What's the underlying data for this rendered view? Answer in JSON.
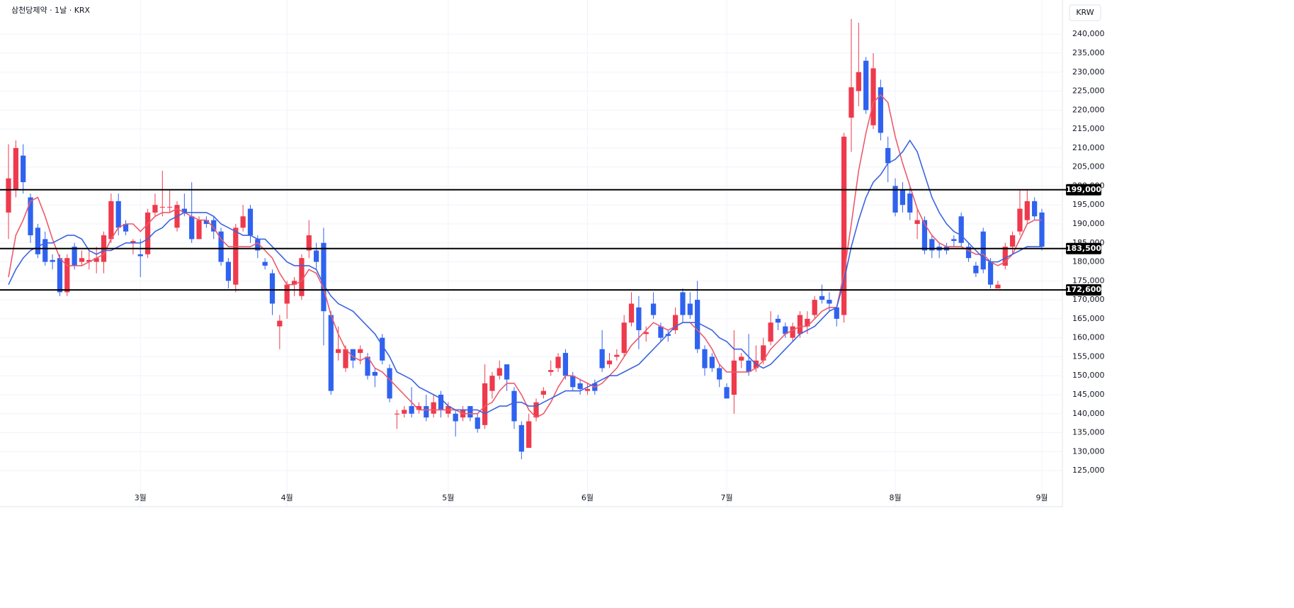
{
  "chart_data": {
    "type": "candlestick",
    "title": "삼천당제약 · 1날 · KRX",
    "currency": "KRW",
    "categories": [
      null,
      null,
      null,
      null,
      null,
      null,
      null,
      null,
      null,
      null,
      null,
      null,
      null,
      null,
      null,
      null,
      null,
      null,
      "3월",
      null,
      null,
      null,
      null,
      null,
      null,
      null,
      null,
      null,
      null,
      null,
      null,
      null,
      null,
      null,
      null,
      null,
      null,
      null,
      "4월",
      null,
      null,
      null,
      null,
      null,
      null,
      null,
      null,
      null,
      null,
      null,
      null,
      null,
      null,
      null,
      null,
      null,
      null,
      null,
      null,
      null,
      "5월",
      null,
      null,
      null,
      null,
      null,
      null,
      null,
      null,
      null,
      null,
      null,
      null,
      null,
      null,
      null,
      null,
      null,
      null,
      "6월",
      null,
      null,
      null,
      null,
      null,
      null,
      null,
      null,
      null,
      null,
      null,
      null,
      null,
      null,
      null,
      null,
      null,
      null,
      "7월",
      null,
      null,
      null,
      null,
      null,
      null,
      null,
      null,
      null,
      null,
      null,
      null,
      null,
      null,
      null,
      null,
      null,
      null,
      null,
      null,
      null,
      null,
      "8월",
      null,
      null,
      null,
      null,
      null,
      null,
      null,
      null,
      null,
      null,
      null,
      null,
      null,
      null,
      null,
      null,
      null,
      null,
      null,
      "9월"
    ],
    "open": [
      193000,
      199000,
      208000,
      197000,
      189000,
      186000,
      180500,
      181000,
      172000,
      184000,
      180000,
      180000,
      180000,
      180000,
      186000,
      196000,
      190000,
      185000,
      182000,
      182000,
      193000,
      194500,
      194500,
      189000,
      194000,
      192000,
      186000,
      191000,
      191000,
      188000,
      180000,
      174000,
      189000,
      194000,
      186000,
      180000,
      177000,
      163000,
      169000,
      174000,
      171000,
      183000,
      183000,
      185000,
      166000,
      156000,
      152000,
      157000,
      156000,
      155000,
      151000,
      160000,
      152000,
      139800,
      140000,
      142000,
      141000,
      142000,
      140000,
      145000,
      140000,
      140000,
      139000,
      142000,
      139000,
      137000,
      146000,
      150000,
      153000,
      146000,
      137000,
      131000,
      139000,
      145000,
      151000,
      152000,
      156000,
      150000,
      148000,
      146000,
      148000,
      157000,
      153000,
      155000,
      156000,
      164000,
      168000,
      161000,
      169000,
      163000,
      161000,
      162000,
      172000,
      169000,
      170000,
      157000,
      155000,
      152000,
      147000,
      145000,
      154000,
      154000,
      152000,
      154000,
      159000,
      165000,
      163000,
      160000,
      161000,
      163000,
      166000,
      171000,
      170000,
      168000,
      166000,
      218000,
      225000,
      233000,
      216000,
      226000,
      210000,
      200000,
      199000,
      198000,
      190000,
      191000,
      186000,
      184000,
      184000,
      186000,
      192000,
      184000,
      179000,
      188000,
      180000,
      173000,
      179000,
      184000,
      188000,
      191000,
      196000,
      193000
    ],
    "high": [
      211000,
      212000,
      211000,
      198000,
      190000,
      188000,
      182000,
      182000,
      182000,
      185000,
      183000,
      183000,
      184000,
      188000,
      198000,
      198000,
      191000,
      186000,
      186000,
      194000,
      198000,
      204000,
      199000,
      196000,
      198000,
      201000,
      192000,
      192000,
      192000,
      189000,
      181000,
      190000,
      195000,
      195000,
      187000,
      181000,
      178000,
      166000,
      175000,
      176000,
      182000,
      191000,
      185000,
      189000,
      167000,
      163000,
      158000,
      157000,
      158000,
      156000,
      152000,
      161000,
      153000,
      141000,
      142000,
      147000,
      143000,
      145000,
      145000,
      146000,
      143000,
      141000,
      142000,
      142000,
      140000,
      153000,
      151000,
      154000,
      153000,
      147000,
      138000,
      140000,
      144000,
      147000,
      154000,
      156000,
      157000,
      151000,
      149000,
      148000,
      149000,
      162000,
      156000,
      157000,
      166000,
      172000,
      171000,
      163000,
      172000,
      164000,
      162000,
      168000,
      173000,
      172000,
      175000,
      158000,
      156000,
      153000,
      148000,
      162000,
      156000,
      161000,
      158000,
      160000,
      167000,
      166000,
      164000,
      164000,
      167000,
      167000,
      171000,
      174000,
      172000,
      168000,
      214000,
      244000,
      243000,
      234000,
      235000,
      228000,
      213000,
      202000,
      201000,
      200000,
      194000,
      192000,
      187000,
      185000,
      185000,
      187000,
      193000,
      185000,
      180000,
      189000,
      181000,
      175000,
      185000,
      188000,
      199000,
      199000,
      197000,
      194000
    ],
    "low": [
      186000,
      197000,
      198000,
      185000,
      181000,
      179000,
      178000,
      171000,
      171000,
      178000,
      179000,
      178000,
      177000,
      177000,
      185000,
      187000,
      187000,
      182000,
      176000,
      181000,
      192000,
      192000,
      193000,
      188000,
      192000,
      185000,
      186000,
      189000,
      186000,
      179000,
      173000,
      172000,
      188000,
      185000,
      181000,
      178000,
      166000,
      157000,
      165000,
      171000,
      170000,
      181000,
      178000,
      158000,
      145000,
      154000,
      151000,
      152000,
      153000,
      149000,
      147000,
      153000,
      143000,
      136000,
      139000,
      139000,
      140000,
      138000,
      139000,
      139000,
      139000,
      134000,
      138000,
      138000,
      135000,
      136000,
      144000,
      149000,
      146000,
      136000,
      128000,
      131000,
      138000,
      144000,
      150000,
      151000,
      149000,
      146000,
      145000,
      145000,
      145000,
      151000,
      152000,
      154000,
      155000,
      163000,
      157000,
      159000,
      165000,
      159000,
      159000,
      161000,
      164000,
      165000,
      156000,
      150000,
      151000,
      147000,
      144000,
      140000,
      152000,
      150000,
      151000,
      153000,
      158000,
      162000,
      160000,
      159000,
      160000,
      161000,
      165000,
      169000,
      167000,
      163000,
      164000,
      209000,
      221000,
      219000,
      215000,
      212000,
      201000,
      192000,
      193000,
      191000,
      186000,
      182000,
      181000,
      181000,
      182000,
      184000,
      184000,
      180000,
      176000,
      177000,
      173000,
      173000,
      178000,
      182000,
      187000,
      190000,
      191000,
      183000
    ],
    "close": [
      202000,
      210000,
      201000,
      187000,
      182000,
      180000,
      180000,
      172000,
      181000,
      179000,
      181000,
      180500,
      181000,
      187000,
      196000,
      189000,
      188000,
      185500,
      181500,
      193000,
      195000,
      194500,
      194500,
      195000,
      193000,
      186000,
      191000,
      190000,
      188000,
      180000,
      175000,
      189000,
      192000,
      187000,
      183000,
      179000,
      169000,
      164500,
      174000,
      175000,
      181000,
      187000,
      180000,
      167000,
      146000,
      157000,
      157000,
      154000,
      157000,
      150000,
      150000,
      154000,
      144000,
      140000,
      141000,
      140000,
      142000,
      139000,
      143000,
      141000,
      142000,
      138000,
      141000,
      139000,
      136000,
      148000,
      150000,
      152000,
      149000,
      138000,
      130000,
      138000,
      143000,
      146000,
      151500,
      155000,
      150000,
      147000,
      146500,
      146500,
      146000,
      152000,
      154000,
      155500,
      164000,
      169000,
      162000,
      161500,
      166000,
      160000,
      160500,
      166000,
      166000,
      166000,
      157000,
      152000,
      152000,
      149000,
      144000,
      154000,
      155000,
      151000,
      154000,
      158000,
      164000,
      164000,
      161000,
      163000,
      166000,
      165000,
      170000,
      170000,
      169000,
      165000,
      213000,
      226000,
      230000,
      220000,
      231000,
      214000,
      206000,
      193000,
      195000,
      193000,
      191000,
      183000,
      183000,
      183000,
      183000,
      185500,
      185000,
      181000,
      177000,
      178000,
      174000,
      174000,
      184000,
      187000,
      194000,
      196000,
      192000,
      184000
    ],
    "up_color": "#ee3a4c",
    "down_color": "#2f62ef",
    "ma_lines": [
      {
        "color": "#ec5a6b",
        "values": [
          176000,
          187000,
          191000,
          196000,
          197000,
          192000,
          186000,
          181000,
          179000,
          179000,
          179000,
          180000,
          181000,
          182000,
          186000,
          189000,
          190000,
          190000,
          188000,
          190000,
          192000,
          193000,
          193000,
          194000,
          193000,
          192000,
          191000,
          191000,
          189000,
          186000,
          184000,
          184000,
          184000,
          184000,
          185000,
          183000,
          181000,
          177000,
          174000,
          174000,
          175000,
          178000,
          177000,
          173000,
          166000,
          161000,
          157000,
          155000,
          154000,
          155000,
          152000,
          151000,
          149000,
          147000,
          145000,
          143000,
          141000,
          141000,
          141000,
          141000,
          141000,
          141000,
          140000,
          140000,
          140000,
          142000,
          143000,
          146000,
          148000,
          148000,
          145000,
          141000,
          139000,
          140000,
          143000,
          147000,
          150000,
          150000,
          149000,
          148000,
          147000,
          148000,
          150000,
          152000,
          155000,
          158000,
          160000,
          162000,
          164000,
          163000,
          162000,
          163000,
          164000,
          164000,
          162000,
          160000,
          157000,
          153000,
          151000,
          151000,
          151000,
          151000,
          152000,
          154000,
          157000,
          159000,
          161000,
          162000,
          163000,
          163000,
          165000,
          167000,
          168000,
          168000,
          177000,
          190000,
          204000,
          214000,
          222000,
          224000,
          222000,
          213000,
          206000,
          200000,
          194000,
          190000,
          187000,
          185000,
          184000,
          184000,
          184000,
          183000,
          182000,
          182000,
          180000,
          179000,
          180000,
          182000,
          186000,
          190000,
          191000,
          191000
        ]
      },
      {
        "color": "#3a63e0",
        "values": [
          174000,
          178000,
          181000,
          183000,
          184000,
          185000,
          185000,
          186000,
          187000,
          187000,
          186000,
          183000,
          182000,
          183000,
          183000,
          184000,
          185000,
          185000,
          185000,
          186000,
          188000,
          189000,
          191000,
          192000,
          193000,
          193000,
          193000,
          193000,
          192000,
          190000,
          189000,
          188000,
          187000,
          187000,
          186000,
          186000,
          184000,
          182000,
          180000,
          179000,
          179000,
          179000,
          178000,
          174000,
          171000,
          169000,
          168000,
          167000,
          165000,
          163000,
          161000,
          158000,
          155000,
          151000,
          150000,
          149000,
          147000,
          146000,
          145000,
          144000,
          142000,
          141000,
          141000,
          141000,
          141000,
          140000,
          141000,
          142000,
          142000,
          143000,
          143000,
          142000,
          142000,
          143000,
          144000,
          145000,
          146000,
          146000,
          146000,
          147000,
          148000,
          149000,
          150000,
          150000,
          151000,
          152000,
          153000,
          155000,
          157000,
          159000,
          161000,
          163000,
          164000,
          164000,
          164000,
          163000,
          162000,
          160000,
          159000,
          157000,
          157000,
          155000,
          153000,
          152000,
          153000,
          155000,
          157000,
          159000,
          161000,
          162000,
          163000,
          165000,
          167000,
          168000,
          175000,
          184000,
          191000,
          197000,
          201000,
          203000,
          206000,
          207000,
          209000,
          212000,
          209000,
          203000,
          197000,
          193000,
          190000,
          188000,
          187000,
          185000,
          183000,
          181000,
          180000,
          180000,
          181000,
          182000,
          183000,
          184000,
          184000,
          184000
        ]
      }
    ],
    "price_lines": [
      {
        "value": 199000,
        "label": "199,000"
      },
      {
        "value": 183500,
        "label": "183,500"
      },
      {
        "value": 172600,
        "label": "172,600"
      }
    ],
    "ylim": [
      115500,
      249000
    ],
    "yticks": [
      {
        "value": 125000,
        "label": "125,000"
      },
      {
        "value": 130000,
        "label": "130,000"
      },
      {
        "value": 135000,
        "label": "135,000"
      },
      {
        "value": 140000,
        "label": "140,000"
      },
      {
        "value": 145000,
        "label": "145,000"
      },
      {
        "value": 150000,
        "label": "150,000"
      },
      {
        "value": 155000,
        "label": "155,000"
      },
      {
        "value": 160000,
        "label": "160,000"
      },
      {
        "value": 165000,
        "label": "165,000"
      },
      {
        "value": 170000,
        "label": "170,000"
      },
      {
        "value": 175000,
        "label": "175,000"
      },
      {
        "value": 180000,
        "label": "180,000"
      },
      {
        "value": 185000,
        "label": "185,000"
      },
      {
        "value": 190000,
        "label": "190,000"
      },
      {
        "value": 195000,
        "label": "195,000"
      },
      {
        "value": 200000,
        "label": "200,000"
      },
      {
        "value": 205000,
        "label": "205,000"
      },
      {
        "value": 210000,
        "label": "210,000"
      },
      {
        "value": 215000,
        "label": "215,000"
      },
      {
        "value": 220000,
        "label": "220,000"
      },
      {
        "value": 225000,
        "label": "225,000"
      },
      {
        "value": 230000,
        "label": "230,000"
      },
      {
        "value": 235000,
        "label": "235,000"
      },
      {
        "value": 240000,
        "label": "240,000"
      }
    ],
    "grid": true
  }
}
